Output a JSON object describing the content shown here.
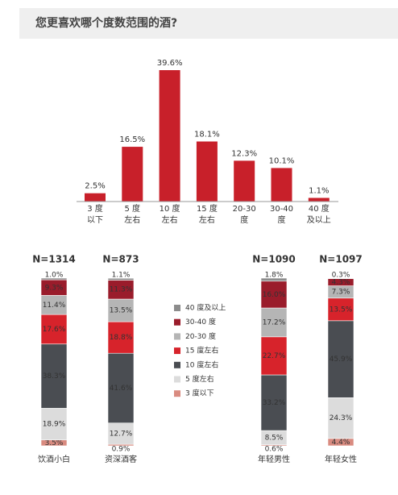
{
  "chart_data": [
    {
      "type": "bar",
      "title": "您更喜欢哪个度数范围的酒?",
      "categories": [
        "3 度\n以下",
        "5 度\n左右",
        "10 度\n左右",
        "15 度\n左右",
        "20-30\n度",
        "30-40\n度",
        "40 度\n及以上"
      ],
      "values": [
        2.5,
        16.5,
        39.6,
        18.1,
        12.3,
        10.1,
        1.1
      ],
      "value_labels": [
        "2.5%",
        "16.5%",
        "39.6%",
        "18.1%",
        "12.3%",
        "10.1%",
        "1.1%"
      ],
      "color": "#c8202a",
      "ylim": [
        0,
        40
      ]
    },
    {
      "type": "stacked_bar",
      "categories": [
        "饮酒小白",
        "资深酒客",
        "年轻男性",
        "年轻女性"
      ],
      "sample_sizes": [
        "N=1314",
        "N=873",
        "N=1090",
        "N=1097"
      ],
      "ylim": [
        0,
        100
      ],
      "series": [
        {
          "name": "3 度以下",
          "color": "#d98b80",
          "values": [
            3.5,
            0.9,
            0.6,
            4.4
          ],
          "value_labels": [
            "3.5%",
            "0.9%",
            "0.6%",
            "4.4%"
          ]
        },
        {
          "name": "5 度左右",
          "color": "#dcdcdc",
          "values": [
            18.9,
            12.7,
            8.5,
            24.3
          ],
          "value_labels": [
            "18.9%",
            "12.7%",
            "8.5%",
            "24.3%"
          ]
        },
        {
          "name": "10 度左右",
          "color": "#4a4d52",
          "values": [
            38.3,
            41.6,
            33.2,
            45.9
          ],
          "value_labels": [
            "38.3%",
            "41.6%",
            "33.2%",
            "45.9%"
          ]
        },
        {
          "name": "15 度左右",
          "color": "#d7232b",
          "values": [
            17.6,
            18.8,
            22.7,
            13.5
          ],
          "value_labels": [
            "17.6%",
            "18.8%",
            "22.7%",
            "13.5%"
          ]
        },
        {
          "name": "20-30 度",
          "color": "#b5b5b5",
          "values": [
            11.4,
            13.5,
            17.2,
            7.3
          ],
          "value_labels": [
            "11.4%",
            "13.5%",
            "17.2%",
            "7.3%"
          ]
        },
        {
          "name": "30-40 度",
          "color": "#9a1c2b",
          "values": [
            9.3,
            11.3,
            16.0,
            4.3
          ],
          "value_labels": [
            "9.3%",
            "11.3%",
            "16.0%",
            "4.3%"
          ]
        },
        {
          "name": "40 度及以上",
          "color": "#8c8c8c",
          "values": [
            1.0,
            1.1,
            1.8,
            0.3
          ],
          "value_labels": [
            "1.0%",
            "1.1%",
            "1.8%",
            "0.3%"
          ]
        }
      ]
    }
  ]
}
